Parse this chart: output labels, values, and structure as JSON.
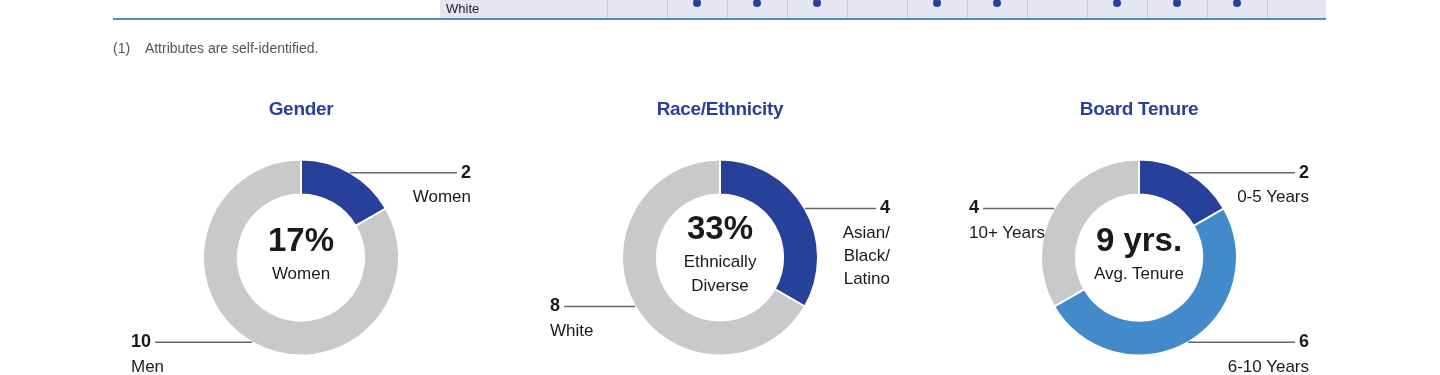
{
  "chart_data": [
    {
      "type": "other",
      "annotations": [
        "White",
        "(1)    Attributes are self-identified."
      ]
    },
    {
      "type": "donut",
      "title": "Gender",
      "categories": [
        "Women",
        "Men"
      ],
      "values": [
        2,
        10
      ],
      "colors": [
        "#27409a",
        "#c8c9cb"
      ],
      "data_labels": true,
      "legend": false,
      "annotations": [
        "17%",
        "Women"
      ]
    },
    {
      "type": "donut",
      "title": "Race/Ethnicity",
      "categories": [
        "Asian/Black/Latino",
        "White"
      ],
      "values": [
        4,
        8
      ],
      "colors": [
        "#27409a",
        "#c8c9cb"
      ],
      "data_labels": true,
      "legend": false,
      "annotations": [
        "33%",
        "Ethnically Diverse"
      ]
    },
    {
      "type": "donut",
      "title": "Board Tenure",
      "categories": [
        "0-5 Years",
        "6-10 Years",
        "10+ Years"
      ],
      "values": [
        2,
        6,
        4
      ],
      "colors": [
        "#27409a",
        "#438acb",
        "#c8c9cb"
      ],
      "data_labels": true,
      "legend": false,
      "annotations": [
        "9 yrs.",
        "Avg. Tenure"
      ]
    }
  ]
}
